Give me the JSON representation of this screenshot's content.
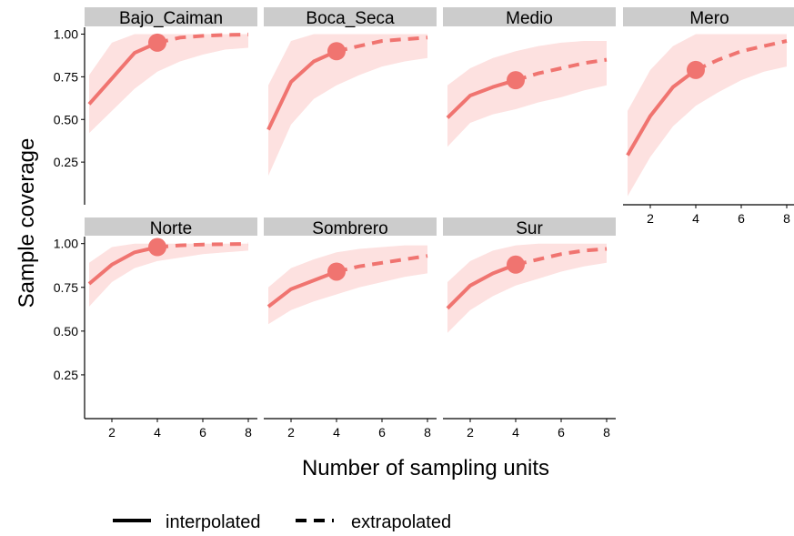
{
  "chart_data": {
    "type": "line",
    "xlabel": "Number of sampling units",
    "ylabel": "Sample coverage",
    "xlim": [
      0.8,
      8.4
    ],
    "ylim": [
      0.0,
      1.04
    ],
    "x_ticks": [
      2,
      4,
      6,
      8
    ],
    "y_ticks": [
      0.25,
      0.5,
      0.75,
      1.0
    ],
    "y_tick_labels": [
      "0.25",
      "0.50",
      "0.75",
      "1.00"
    ],
    "grid": false,
    "legend": {
      "position": "bottom",
      "entries": [
        {
          "label": "interpolated",
          "style": "solid"
        },
        {
          "label": "extrapolated",
          "style": "dashed"
        }
      ]
    },
    "series_color": "#f07470",
    "band_color": "#fde1e0",
    "strip_color": "#cccccc",
    "panels": [
      {
        "label": "Bajo_Caiman",
        "observed_x": 4,
        "x": [
          1,
          2,
          3,
          4,
          5,
          6,
          7,
          8
        ],
        "y": [
          0.59,
          0.74,
          0.89,
          0.95,
          0.98,
          0.99,
          0.995,
          0.998
        ],
        "lower": [
          0.42,
          0.55,
          0.68,
          0.78,
          0.84,
          0.88,
          0.91,
          0.92
        ],
        "upper": [
          0.76,
          0.95,
          1.0,
          1.0,
          1.0,
          1.0,
          1.0,
          1.0
        ]
      },
      {
        "label": "Boca_Seca",
        "observed_x": 4,
        "x": [
          1,
          2,
          3,
          4,
          5,
          6,
          7,
          8
        ],
        "y": [
          0.44,
          0.72,
          0.84,
          0.9,
          0.93,
          0.96,
          0.97,
          0.98
        ],
        "lower": [
          0.17,
          0.47,
          0.62,
          0.7,
          0.76,
          0.81,
          0.84,
          0.86
        ],
        "upper": [
          0.7,
          0.96,
          1.0,
          1.0,
          1.0,
          1.0,
          1.0,
          1.0
        ]
      },
      {
        "label": "Medio",
        "observed_x": 4,
        "x": [
          1,
          2,
          3,
          4,
          5,
          6,
          7,
          8
        ],
        "y": [
          0.51,
          0.64,
          0.69,
          0.73,
          0.77,
          0.8,
          0.83,
          0.85
        ],
        "lower": [
          0.34,
          0.48,
          0.53,
          0.56,
          0.6,
          0.63,
          0.67,
          0.7
        ],
        "upper": [
          0.7,
          0.8,
          0.86,
          0.9,
          0.93,
          0.95,
          0.96,
          0.96
        ]
      },
      {
        "label": "Mero",
        "observed_x": 4,
        "x": [
          1,
          2,
          3,
          4,
          5,
          6,
          7,
          8
        ],
        "y": [
          0.29,
          0.52,
          0.69,
          0.79,
          0.85,
          0.9,
          0.93,
          0.96
        ],
        "lower": [
          0.05,
          0.28,
          0.46,
          0.58,
          0.66,
          0.73,
          0.78,
          0.81
        ],
        "upper": [
          0.55,
          0.79,
          0.93,
          1.0,
          1.0,
          1.0,
          1.0,
          1.0
        ]
      },
      {
        "label": "Norte",
        "observed_x": 4,
        "x": [
          1,
          2,
          3,
          4,
          5,
          6,
          7,
          8
        ],
        "y": [
          0.77,
          0.88,
          0.95,
          0.98,
          0.99,
          0.995,
          0.997,
          0.998
        ],
        "lower": [
          0.64,
          0.78,
          0.86,
          0.9,
          0.92,
          0.94,
          0.95,
          0.96
        ],
        "upper": [
          0.89,
          0.98,
          1.0,
          1.0,
          1.0,
          1.0,
          1.0,
          1.0
        ]
      },
      {
        "label": "Sombrero",
        "observed_x": 4,
        "x": [
          1,
          2,
          3,
          4,
          5,
          6,
          7,
          8
        ],
        "y": [
          0.64,
          0.74,
          0.79,
          0.84,
          0.87,
          0.89,
          0.91,
          0.93
        ],
        "lower": [
          0.54,
          0.62,
          0.67,
          0.71,
          0.75,
          0.78,
          0.81,
          0.83
        ],
        "upper": [
          0.75,
          0.86,
          0.91,
          0.95,
          0.97,
          0.98,
          0.99,
          0.99
        ]
      },
      {
        "label": "Sur",
        "observed_x": 4,
        "x": [
          1,
          2,
          3,
          4,
          5,
          6,
          7,
          8
        ],
        "y": [
          0.63,
          0.76,
          0.83,
          0.88,
          0.91,
          0.94,
          0.96,
          0.97
        ],
        "lower": [
          0.49,
          0.62,
          0.7,
          0.76,
          0.8,
          0.84,
          0.87,
          0.89
        ],
        "upper": [
          0.78,
          0.9,
          0.96,
          0.99,
          1.0,
          1.0,
          1.0,
          1.0
        ]
      }
    ]
  }
}
